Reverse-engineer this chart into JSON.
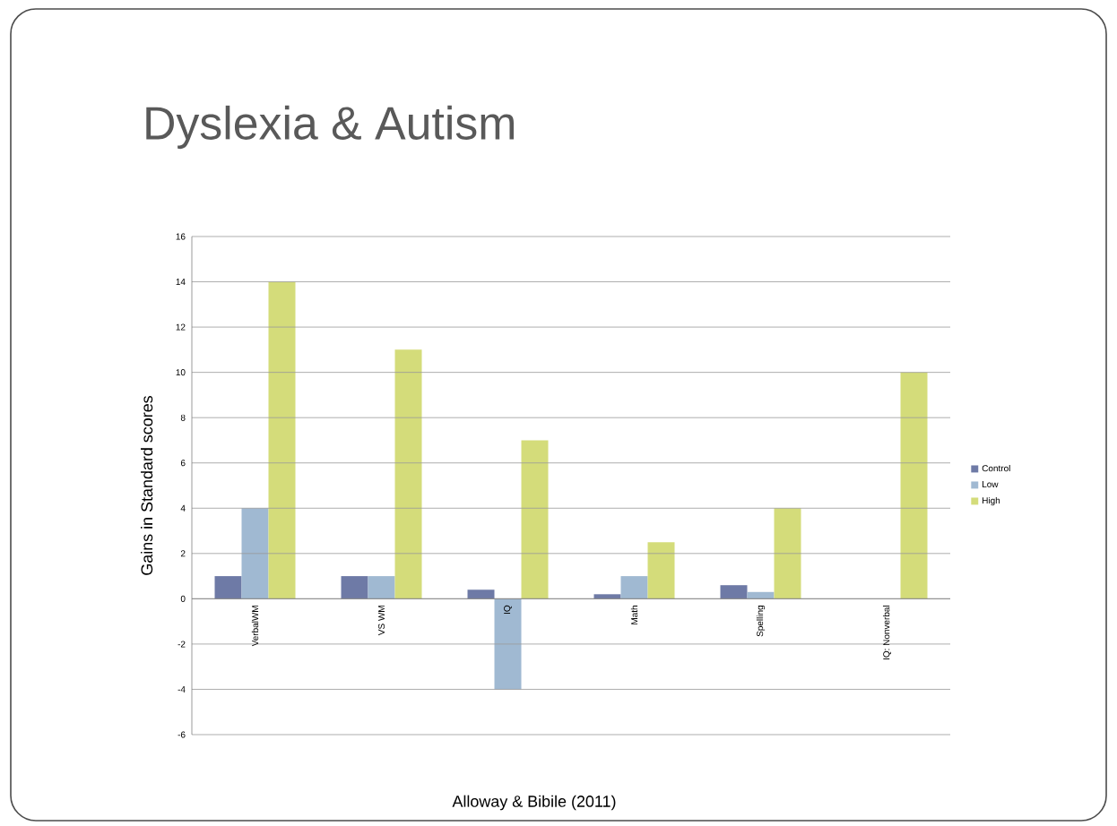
{
  "chart_data": {
    "type": "bar",
    "title": "Dyslexia & Autism",
    "ylabel": "Gains in Standard scores",
    "annotations": [
      "Alloway & Bibile (2011)"
    ],
    "categories": [
      "VerbalWM",
      "VS WM",
      "IQ",
      "Math",
      "Spelling",
      "IQ: Nonverbal"
    ],
    "series": [
      {
        "name": "Control",
        "color": "#6e7aa6",
        "values": [
          1,
          1,
          0.4,
          0.2,
          0.6,
          null
        ]
      },
      {
        "name": "Low",
        "color": "#a0b9d2",
        "values": [
          4,
          1,
          -4,
          1,
          0.3,
          null
        ]
      },
      {
        "name": "High",
        "color": "#d4dc7a",
        "values": [
          14,
          11,
          7,
          2.5,
          4,
          10
        ]
      }
    ],
    "ylim": [
      -6,
      16
    ],
    "yticks": [
      -6,
      -4,
      -2,
      0,
      2,
      4,
      6,
      8,
      10,
      12,
      14,
      16
    ],
    "grid": "y",
    "legend": "right"
  }
}
